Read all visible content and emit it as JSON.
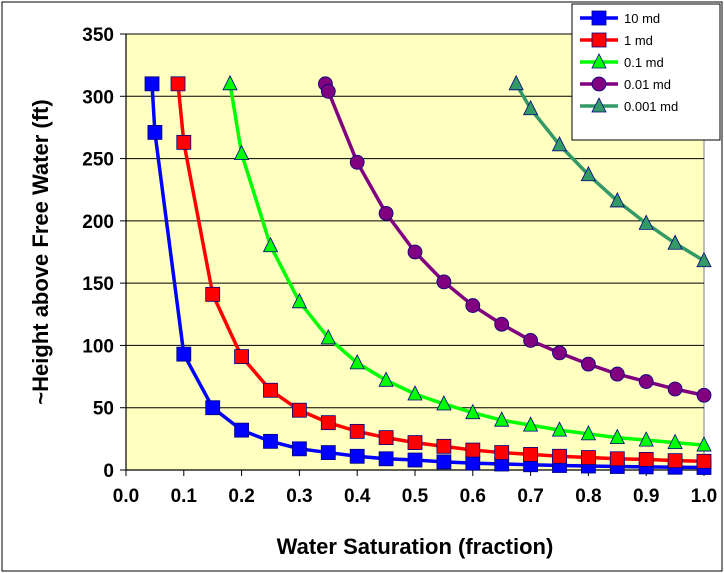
{
  "chart_data": {
    "type": "line",
    "xlabel": "Water Saturation (fraction)",
    "ylabel": "~Height above Free Water (ft)",
    "xlim": [
      0.0,
      1.0
    ],
    "ylim": [
      0,
      350
    ],
    "x_ticks": [
      0.0,
      0.1,
      0.2,
      0.3,
      0.4,
      0.5,
      0.6,
      0.7,
      0.8,
      0.9,
      1.0
    ],
    "x_tick_labels": [
      "0.0",
      "0.1",
      "0.2",
      "0.3",
      "0.4",
      "0.5",
      "0.6",
      "0.7",
      "0.8",
      "0.9",
      "1.0"
    ],
    "y_ticks": [
      0,
      50,
      100,
      150,
      200,
      250,
      300,
      350
    ],
    "y_tick_labels": [
      "0",
      "50",
      "100",
      "150",
      "200",
      "250",
      "300",
      "350"
    ],
    "grid": "horizontal",
    "plot_background": "#ffffc0",
    "legend_position": "top-right",
    "series": [
      {
        "name": "10 md",
        "color": "#0000ff",
        "marker": "square",
        "x": [
          0.045,
          0.05,
          0.1,
          0.15,
          0.2,
          0.25,
          0.3,
          0.35,
          0.4,
          0.45,
          0.5,
          0.55,
          0.6,
          0.65,
          0.7,
          0.75,
          0.8,
          0.85,
          0.9,
          0.95,
          1.0
        ],
        "y": [
          310,
          271,
          93,
          50,
          32,
          23,
          17,
          14,
          11,
          9,
          8,
          6.5,
          5.5,
          4.8,
          4.2,
          3.6,
          3.2,
          2.8,
          2.5,
          2.2,
          2
        ]
      },
      {
        "name": "1 md",
        "color": "#ff0000",
        "marker": "square",
        "x": [
          0.09,
          0.1,
          0.15,
          0.2,
          0.25,
          0.3,
          0.35,
          0.4,
          0.45,
          0.5,
          0.55,
          0.6,
          0.65,
          0.7,
          0.75,
          0.8,
          0.85,
          0.9,
          0.95,
          1.0
        ],
        "y": [
          310,
          263,
          141,
          91,
          64,
          48,
          38,
          31,
          26,
          22,
          19,
          16,
          14,
          12.5,
          11,
          10,
          9,
          8.5,
          7.5,
          7
        ]
      },
      {
        "name": "0.1 md",
        "color": "#00ff00",
        "marker": "triangle",
        "x": [
          0.18,
          0.2,
          0.25,
          0.3,
          0.35,
          0.4,
          0.45,
          0.5,
          0.55,
          0.6,
          0.65,
          0.7,
          0.75,
          0.8,
          0.85,
          0.9,
          0.95,
          1.0
        ],
        "y": [
          310,
          254,
          180,
          135,
          106,
          86,
          72,
          61,
          53,
          46,
          40,
          36,
          32,
          29,
          26,
          24,
          22,
          20
        ]
      },
      {
        "name": "0.01 md",
        "color": "#800080",
        "marker": "circle",
        "x": [
          0.345,
          0.35,
          0.4,
          0.45,
          0.5,
          0.55,
          0.6,
          0.65,
          0.7,
          0.75,
          0.8,
          0.85,
          0.9,
          0.95,
          1.0
        ],
        "y": [
          310,
          304,
          247,
          206,
          175,
          151,
          132,
          117,
          104,
          94,
          85,
          77,
          71,
          65,
          60
        ]
      },
      {
        "name": "0.001 md",
        "color": "#339966",
        "marker": "triangle",
        "x": [
          0.675,
          0.7,
          0.75,
          0.8,
          0.85,
          0.9,
          0.95,
          1.0
        ],
        "y": [
          310,
          290,
          261,
          237,
          216,
          198,
          182,
          168
        ]
      }
    ]
  }
}
